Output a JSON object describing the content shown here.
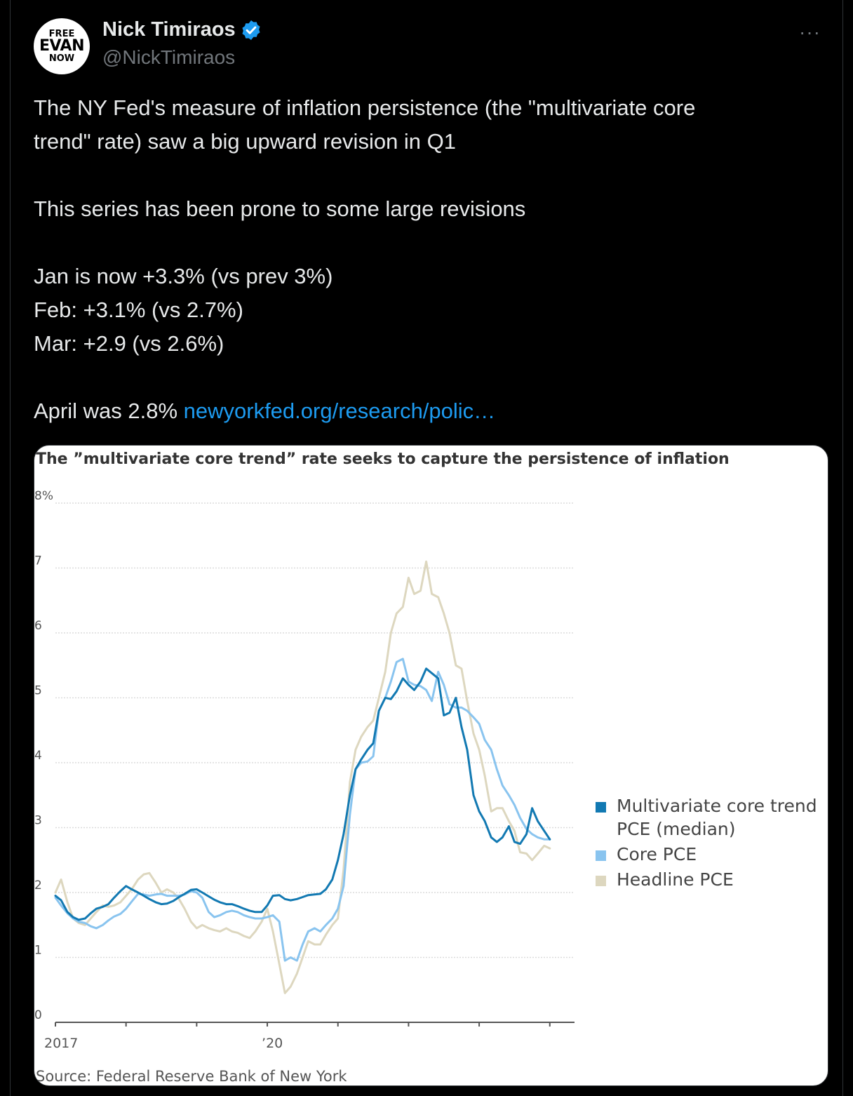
{
  "user": {
    "avatar_lines": [
      "FREE",
      "EVAN",
      "NOW"
    ],
    "name": "Nick Timiraos",
    "handle": "@NickTimiraos",
    "verified_icon": "verified-badge-icon",
    "more_label": "···"
  },
  "tweet": {
    "paragraphs": [
      [
        "The NY Fed's measure of inflation persistence (the \"multivariate core",
        "trend\" rate) saw a big upward revision in Q1"
      ],
      [
        "This series has been prone to some large revisions"
      ],
      [
        "Jan is now +3.3% (vs prev 3%)",
        "Feb: +3.1% (vs 2.7%)",
        "Mar: +2.9 (vs 2.6%)"
      ]
    ],
    "last_line_text": "April was 2.8% ",
    "link_text": "newyorkfed.org/research/polic…"
  },
  "colors": {
    "link": "#1d9bf0",
    "multivariate": "#1279b2",
    "core": "#89c4ef",
    "headline": "#ddd7bf"
  },
  "chart_data": {
    "type": "line",
    "title": "The ”multivariate core trend” rate seeks to capture the persistence of inflation",
    "source": "Source: Federal Reserve Bank of New York",
    "y_ticks": [
      "8%",
      "7",
      "6",
      "5",
      "4",
      "3",
      "2",
      "1",
      "0"
    ],
    "ylim": [
      0,
      8
    ],
    "x_ticks": [
      "2017",
      "’20"
    ],
    "xlim": [
      2017.0,
      2024.35
    ],
    "grid": true,
    "legend_position": "right",
    "series": [
      {
        "name": "Multivariate core trend PCE (median)",
        "color": "#1279b2",
        "points": [
          [
            2017.0,
            1.95
          ],
          [
            2017.08,
            1.88
          ],
          [
            2017.17,
            1.7
          ],
          [
            2017.25,
            1.62
          ],
          [
            2017.33,
            1.58
          ],
          [
            2017.42,
            1.6
          ],
          [
            2017.5,
            1.68
          ],
          [
            2017.58,
            1.75
          ],
          [
            2017.67,
            1.78
          ],
          [
            2017.75,
            1.82
          ],
          [
            2017.83,
            1.92
          ],
          [
            2017.92,
            2.02
          ],
          [
            2018.0,
            2.1
          ],
          [
            2018.08,
            2.05
          ],
          [
            2018.17,
            2.0
          ],
          [
            2018.25,
            1.95
          ],
          [
            2018.33,
            1.9
          ],
          [
            2018.42,
            1.85
          ],
          [
            2018.5,
            1.82
          ],
          [
            2018.58,
            1.83
          ],
          [
            2018.67,
            1.87
          ],
          [
            2018.75,
            1.93
          ],
          [
            2018.83,
            1.98
          ],
          [
            2018.92,
            2.04
          ],
          [
            2019.0,
            2.05
          ],
          [
            2019.08,
            2.0
          ],
          [
            2019.17,
            1.94
          ],
          [
            2019.25,
            1.89
          ],
          [
            2019.33,
            1.85
          ],
          [
            2019.42,
            1.82
          ],
          [
            2019.5,
            1.82
          ],
          [
            2019.58,
            1.79
          ],
          [
            2019.67,
            1.75
          ],
          [
            2019.75,
            1.72
          ],
          [
            2019.83,
            1.7
          ],
          [
            2019.92,
            1.7
          ],
          [
            2020.0,
            1.8
          ],
          [
            2020.08,
            1.95
          ],
          [
            2020.17,
            1.96
          ],
          [
            2020.25,
            1.9
          ],
          [
            2020.33,
            1.88
          ],
          [
            2020.42,
            1.9
          ],
          [
            2020.5,
            1.93
          ],
          [
            2020.58,
            1.96
          ],
          [
            2020.67,
            1.97
          ],
          [
            2020.75,
            1.98
          ],
          [
            2020.83,
            2.05
          ],
          [
            2020.92,
            2.2
          ],
          [
            2021.0,
            2.5
          ],
          [
            2021.08,
            2.9
          ],
          [
            2021.17,
            3.5
          ],
          [
            2021.25,
            3.9
          ],
          [
            2021.33,
            4.05
          ],
          [
            2021.42,
            4.2
          ],
          [
            2021.5,
            4.3
          ],
          [
            2021.58,
            4.8
          ],
          [
            2021.67,
            5.0
          ],
          [
            2021.75,
            4.98
          ],
          [
            2021.83,
            5.1
          ],
          [
            2021.92,
            5.3
          ],
          [
            2022.0,
            5.2
          ],
          [
            2022.08,
            5.12
          ],
          [
            2022.17,
            5.25
          ],
          [
            2022.25,
            5.45
          ],
          [
            2022.33,
            5.38
          ],
          [
            2022.42,
            5.3
          ],
          [
            2022.5,
            4.73
          ],
          [
            2022.58,
            4.77
          ],
          [
            2022.67,
            5.0
          ],
          [
            2022.75,
            4.55
          ],
          [
            2022.83,
            4.2
          ],
          [
            2022.92,
            3.5
          ],
          [
            2023.0,
            3.25
          ],
          [
            2023.08,
            3.1
          ],
          [
            2023.17,
            2.85
          ],
          [
            2023.25,
            2.78
          ],
          [
            2023.33,
            2.85
          ],
          [
            2023.42,
            3.02
          ],
          [
            2023.5,
            2.78
          ],
          [
            2023.58,
            2.75
          ],
          [
            2023.67,
            2.9
          ],
          [
            2023.75,
            3.3
          ],
          [
            2023.83,
            3.1
          ],
          [
            2023.92,
            2.95
          ],
          [
            2024.0,
            2.82
          ]
        ]
      },
      {
        "name": "Core PCE",
        "color": "#89c4ef",
        "points": [
          [
            2017.0,
            1.92
          ],
          [
            2017.08,
            1.8
          ],
          [
            2017.17,
            1.68
          ],
          [
            2017.25,
            1.6
          ],
          [
            2017.33,
            1.55
          ],
          [
            2017.42,
            1.53
          ],
          [
            2017.5,
            1.48
          ],
          [
            2017.58,
            1.45
          ],
          [
            2017.67,
            1.5
          ],
          [
            2017.75,
            1.57
          ],
          [
            2017.83,
            1.63
          ],
          [
            2017.92,
            1.67
          ],
          [
            2018.0,
            1.75
          ],
          [
            2018.08,
            1.86
          ],
          [
            2018.17,
            1.98
          ],
          [
            2018.25,
            1.97
          ],
          [
            2018.33,
            1.95
          ],
          [
            2018.42,
            1.97
          ],
          [
            2018.5,
            1.98
          ],
          [
            2018.58,
            1.95
          ],
          [
            2018.67,
            1.95
          ],
          [
            2018.75,
            1.95
          ],
          [
            2018.83,
            1.97
          ],
          [
            2018.92,
            2.02
          ],
          [
            2019.0,
            2.0
          ],
          [
            2019.08,
            1.92
          ],
          [
            2019.17,
            1.7
          ],
          [
            2019.25,
            1.62
          ],
          [
            2019.33,
            1.65
          ],
          [
            2019.42,
            1.7
          ],
          [
            2019.5,
            1.72
          ],
          [
            2019.58,
            1.7
          ],
          [
            2019.67,
            1.65
          ],
          [
            2019.75,
            1.62
          ],
          [
            2019.83,
            1.6
          ],
          [
            2019.92,
            1.6
          ],
          [
            2020.0,
            1.62
          ],
          [
            2020.08,
            1.65
          ],
          [
            2020.17,
            1.55
          ],
          [
            2020.25,
            0.95
          ],
          [
            2020.33,
            1.0
          ],
          [
            2020.42,
            0.95
          ],
          [
            2020.5,
            1.2
          ],
          [
            2020.58,
            1.4
          ],
          [
            2020.67,
            1.45
          ],
          [
            2020.75,
            1.4
          ],
          [
            2020.83,
            1.5
          ],
          [
            2020.92,
            1.6
          ],
          [
            2021.0,
            1.75
          ],
          [
            2021.08,
            2.1
          ],
          [
            2021.17,
            3.2
          ],
          [
            2021.25,
            3.9
          ],
          [
            2021.33,
            4.0
          ],
          [
            2021.42,
            4.02
          ],
          [
            2021.5,
            4.1
          ],
          [
            2021.58,
            4.8
          ],
          [
            2021.67,
            5.0
          ],
          [
            2021.75,
            5.25
          ],
          [
            2021.83,
            5.55
          ],
          [
            2021.92,
            5.6
          ],
          [
            2022.0,
            5.25
          ],
          [
            2022.08,
            5.2
          ],
          [
            2022.17,
            5.18
          ],
          [
            2022.25,
            5.12
          ],
          [
            2022.33,
            4.95
          ],
          [
            2022.42,
            5.4
          ],
          [
            2022.5,
            5.2
          ],
          [
            2022.58,
            4.9
          ],
          [
            2022.67,
            4.85
          ],
          [
            2022.75,
            4.85
          ],
          [
            2022.83,
            4.8
          ],
          [
            2022.92,
            4.7
          ],
          [
            2023.0,
            4.6
          ],
          [
            2023.08,
            4.35
          ],
          [
            2023.17,
            4.2
          ],
          [
            2023.25,
            3.9
          ],
          [
            2023.33,
            3.65
          ],
          [
            2023.42,
            3.5
          ],
          [
            2023.5,
            3.35
          ],
          [
            2023.58,
            3.15
          ],
          [
            2023.67,
            2.98
          ],
          [
            2023.75,
            2.9
          ],
          [
            2023.83,
            2.85
          ],
          [
            2023.92,
            2.82
          ],
          [
            2024.0,
            2.82
          ]
        ]
      },
      {
        "name": "Headline PCE",
        "color": "#ddd7bf",
        "points": [
          [
            2017.0,
            2.0
          ],
          [
            2017.08,
            2.2
          ],
          [
            2017.17,
            1.85
          ],
          [
            2017.25,
            1.6
          ],
          [
            2017.33,
            1.53
          ],
          [
            2017.42,
            1.5
          ],
          [
            2017.5,
            1.6
          ],
          [
            2017.58,
            1.7
          ],
          [
            2017.67,
            1.8
          ],
          [
            2017.75,
            1.78
          ],
          [
            2017.83,
            1.8
          ],
          [
            2017.92,
            1.85
          ],
          [
            2018.0,
            1.95
          ],
          [
            2018.08,
            2.05
          ],
          [
            2018.17,
            2.2
          ],
          [
            2018.25,
            2.28
          ],
          [
            2018.33,
            2.3
          ],
          [
            2018.42,
            2.15
          ],
          [
            2018.5,
            2.0
          ],
          [
            2018.58,
            2.05
          ],
          [
            2018.67,
            2.0
          ],
          [
            2018.75,
            1.9
          ],
          [
            2018.83,
            1.75
          ],
          [
            2018.92,
            1.55
          ],
          [
            2019.0,
            1.45
          ],
          [
            2019.08,
            1.5
          ],
          [
            2019.17,
            1.45
          ],
          [
            2019.25,
            1.42
          ],
          [
            2019.33,
            1.4
          ],
          [
            2019.42,
            1.45
          ],
          [
            2019.5,
            1.4
          ],
          [
            2019.58,
            1.38
          ],
          [
            2019.67,
            1.33
          ],
          [
            2019.75,
            1.3
          ],
          [
            2019.83,
            1.4
          ],
          [
            2019.92,
            1.55
          ],
          [
            2020.0,
            1.75
          ],
          [
            2020.08,
            1.4
          ],
          [
            2020.17,
            0.9
          ],
          [
            2020.25,
            0.45
          ],
          [
            2020.33,
            0.55
          ],
          [
            2020.42,
            0.75
          ],
          [
            2020.5,
            1.0
          ],
          [
            2020.58,
            1.25
          ],
          [
            2020.67,
            1.2
          ],
          [
            2020.75,
            1.2
          ],
          [
            2020.83,
            1.35
          ],
          [
            2020.92,
            1.5
          ],
          [
            2021.0,
            1.6
          ],
          [
            2021.08,
            2.35
          ],
          [
            2021.17,
            3.7
          ],
          [
            2021.25,
            4.2
          ],
          [
            2021.33,
            4.4
          ],
          [
            2021.42,
            4.55
          ],
          [
            2021.5,
            4.65
          ],
          [
            2021.58,
            5.0
          ],
          [
            2021.67,
            5.4
          ],
          [
            2021.75,
            6.0
          ],
          [
            2021.83,
            6.3
          ],
          [
            2021.92,
            6.4
          ],
          [
            2022.0,
            6.85
          ],
          [
            2022.08,
            6.6
          ],
          [
            2022.17,
            6.65
          ],
          [
            2022.25,
            7.1
          ],
          [
            2022.33,
            6.6
          ],
          [
            2022.42,
            6.55
          ],
          [
            2022.5,
            6.3
          ],
          [
            2022.58,
            6.0
          ],
          [
            2022.67,
            5.5
          ],
          [
            2022.75,
            5.45
          ],
          [
            2022.83,
            4.95
          ],
          [
            2022.92,
            4.45
          ],
          [
            2023.0,
            4.2
          ],
          [
            2023.08,
            3.8
          ],
          [
            2023.17,
            3.25
          ],
          [
            2023.25,
            3.3
          ],
          [
            2023.33,
            3.3
          ],
          [
            2023.42,
            3.1
          ],
          [
            2023.5,
            2.95
          ],
          [
            2023.58,
            2.62
          ],
          [
            2023.67,
            2.6
          ],
          [
            2023.75,
            2.5
          ],
          [
            2023.83,
            2.6
          ],
          [
            2023.92,
            2.72
          ],
          [
            2024.0,
            2.68
          ]
        ]
      }
    ],
    "legend": [
      {
        "lines": [
          "Multivariate core trend",
          "PCE (median)"
        ],
        "color": "#1279b2"
      },
      {
        "lines": [
          "Core PCE"
        ],
        "color": "#89c4ef"
      },
      {
        "lines": [
          "Headline PCE"
        ],
        "color": "#ddd7bf"
      }
    ]
  }
}
